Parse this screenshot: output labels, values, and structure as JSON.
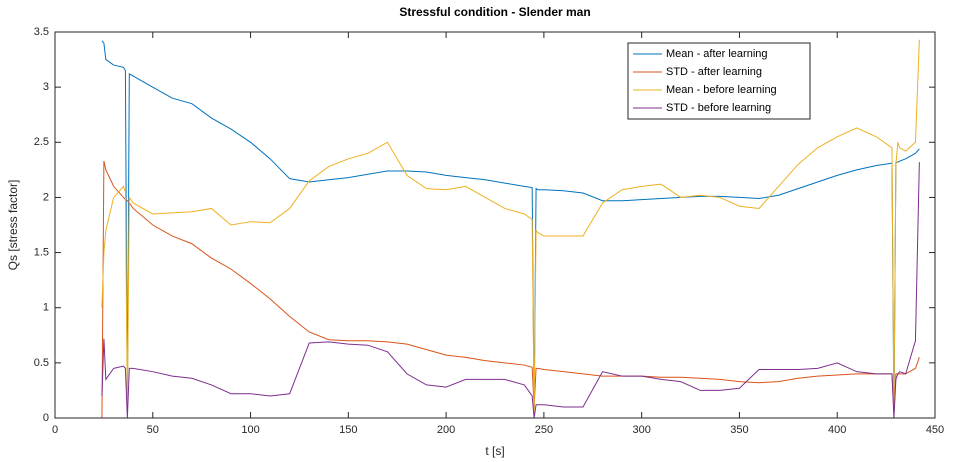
{
  "chart_data": {
    "type": "line",
    "title": "Stressful condition - Slender man",
    "x_label": "t [s]",
    "y_label": "Qs [stress factor]",
    "xlim": [
      0,
      450
    ],
    "ylim": [
      0,
      3.5
    ],
    "xticks": [
      0,
      50,
      100,
      150,
      200,
      250,
      300,
      350,
      400,
      450
    ],
    "yticks": [
      0,
      0.5,
      1,
      1.5,
      2,
      2.5,
      3,
      3.5
    ],
    "grid": false,
    "legend": "northeast",
    "x": [
      24,
      25,
      26,
      30,
      35,
      36,
      37,
      38,
      40,
      50,
      60,
      70,
      80,
      90,
      100,
      110,
      120,
      130,
      140,
      150,
      160,
      170,
      180,
      190,
      200,
      210,
      220,
      230,
      240,
      244,
      245,
      246,
      247,
      250,
      260,
      270,
      280,
      290,
      300,
      310,
      320,
      330,
      340,
      350,
      360,
      370,
      380,
      390,
      400,
      410,
      420,
      428,
      429,
      430,
      431,
      432,
      435,
      440,
      442
    ],
    "series": [
      {
        "name": "Mean - after learning",
        "color": "#0072bd",
        "values": [
          3.42,
          3.4,
          3.25,
          3.2,
          3.18,
          3.15,
          0.05,
          3.12,
          3.1,
          3.0,
          2.9,
          2.85,
          2.72,
          2.62,
          2.5,
          2.35,
          2.17,
          2.14,
          2.16,
          2.18,
          2.21,
          2.24,
          2.24,
          2.23,
          2.2,
          2.18,
          2.16,
          2.13,
          2.1,
          2.09,
          0.05,
          2.08,
          2.07,
          2.07,
          2.06,
          2.04,
          1.97,
          1.97,
          1.98,
          1.99,
          2.0,
          2.01,
          2.01,
          2.0,
          1.99,
          2.02,
          2.08,
          2.14,
          2.2,
          2.25,
          2.29,
          2.31,
          0.0,
          2.32,
          2.32,
          2.33,
          2.35,
          2.4,
          2.44
        ]
      },
      {
        "name": "STD - after learning",
        "color": "#d95319",
        "values": [
          0,
          2.33,
          2.25,
          2.1,
          2.0,
          1.98,
          1.97,
          1.95,
          1.9,
          1.75,
          1.65,
          1.58,
          1.45,
          1.35,
          1.22,
          1.08,
          0.92,
          0.78,
          0.71,
          0.7,
          0.7,
          0.69,
          0.67,
          0.62,
          0.57,
          0.55,
          0.52,
          0.5,
          0.48,
          0.46,
          0.1,
          0.45,
          0.45,
          0.44,
          0.42,
          0.4,
          0.38,
          0.38,
          0.38,
          0.37,
          0.37,
          0.36,
          0.35,
          0.33,
          0.32,
          0.33,
          0.36,
          0.38,
          0.39,
          0.4,
          0.4,
          0.4,
          0.05,
          0.4,
          0.4,
          0.4,
          0.4,
          0.45,
          0.55
        ]
      },
      {
        "name": "Mean - before learning",
        "color": "#edb120",
        "values": [
          1.0,
          1.5,
          1.7,
          2.0,
          2.1,
          2.05,
          0.1,
          2.0,
          1.95,
          1.85,
          1.86,
          1.87,
          1.9,
          1.75,
          1.78,
          1.77,
          1.9,
          2.15,
          2.28,
          2.35,
          2.4,
          2.5,
          2.2,
          2.08,
          2.07,
          2.1,
          2.0,
          1.9,
          1.85,
          1.8,
          0.05,
          1.7,
          1.68,
          1.65,
          1.65,
          1.65,
          1.95,
          2.07,
          2.1,
          2.12,
          2.0,
          2.02,
          2.0,
          1.92,
          1.9,
          2.1,
          2.3,
          2.45,
          2.55,
          2.63,
          2.55,
          2.45,
          0.1,
          2.3,
          2.5,
          2.45,
          2.42,
          2.5,
          3.43
        ]
      },
      {
        "name": "STD - before learning",
        "color": "#7e2f8e",
        "values": [
          0.2,
          0.72,
          0.35,
          0.45,
          0.47,
          0.45,
          0.0,
          0.45,
          0.45,
          0.42,
          0.38,
          0.36,
          0.3,
          0.22,
          0.22,
          0.2,
          0.22,
          0.68,
          0.69,
          0.67,
          0.66,
          0.6,
          0.4,
          0.3,
          0.28,
          0.35,
          0.35,
          0.35,
          0.3,
          0.2,
          0.0,
          0.12,
          0.12,
          0.12,
          0.1,
          0.1,
          0.42,
          0.38,
          0.38,
          0.35,
          0.33,
          0.25,
          0.25,
          0.27,
          0.44,
          0.44,
          0.44,
          0.45,
          0.5,
          0.42,
          0.4,
          0.4,
          0.0,
          0.35,
          0.4,
          0.42,
          0.4,
          0.7,
          2.32
        ]
      }
    ]
  }
}
